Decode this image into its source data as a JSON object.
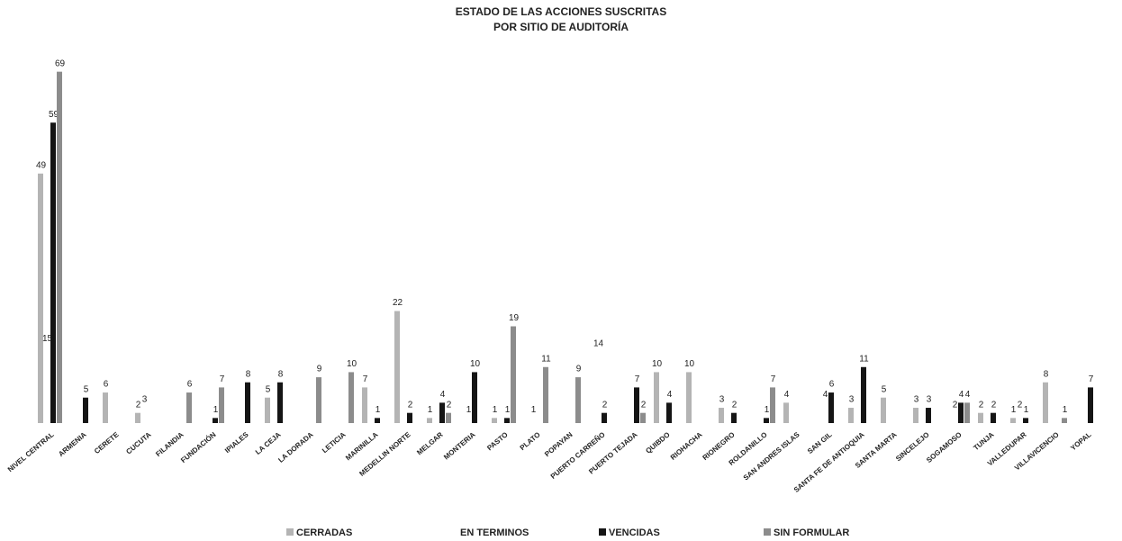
{
  "chart_data": {
    "type": "bar",
    "title_lines": [
      "ESTADO DE LAS ACCIONES SUSCRITAS",
      "POR SITIO DE AUDITORÍA"
    ],
    "categories": [
      "NIVEL CENTRAL",
      "ARMENIA",
      "CERETE",
      "CUCUTA",
      "FILANDIA",
      "FUNDACIÓN",
      "IPIALES",
      "LA CEJA",
      "LA DORADA",
      "LETICIA",
      "MARINILLA",
      "MEDELLIN NORTE",
      "MELGAR",
      "MONTERIA",
      "PASTO",
      "PLATO",
      "POPAYAN",
      "PUERTO CARREÑO",
      "PUERTO TEJADA",
      "QUIBDO",
      "RIOHACHA",
      "RIONEGRO",
      "ROLDANILLO",
      "SAN ANDRES ISLAS",
      "SAN GIL",
      "SANTA FE DE ANTIOQUIA",
      "SANTA MARTA",
      "SINCELEJO",
      "SOGAMOSO",
      "TUNJA",
      "VALLEDUPAR",
      "VILLAVICENCIO",
      "YOPAL"
    ],
    "series": [
      {
        "name": "CERRADAS",
        "color": "#b4b4b4",
        "values": [
          49,
          null,
          6,
          2,
          null,
          null,
          null,
          5,
          null,
          null,
          7,
          22,
          1,
          null,
          1,
          null,
          null,
          null,
          null,
          10,
          10,
          3,
          null,
          4,
          null,
          3,
          5,
          3,
          null,
          2,
          1,
          8,
          null
        ]
      },
      {
        "name": "EN TERMINOS",
        "color": "#ffffff",
        "values": [
          15,
          null,
          null,
          3,
          null,
          null,
          null,
          null,
          null,
          null,
          null,
          null,
          null,
          1,
          null,
          1,
          null,
          14,
          null,
          null,
          null,
          null,
          null,
          null,
          4,
          null,
          null,
          null,
          2,
          null,
          2,
          null,
          null
        ]
      },
      {
        "name": "VENCIDAS",
        "color": "#151515",
        "values": [
          59,
          5,
          null,
          null,
          null,
          1,
          8,
          8,
          null,
          null,
          1,
          2,
          4,
          10,
          1,
          null,
          null,
          2,
          7,
          4,
          null,
          2,
          1,
          null,
          6,
          11,
          null,
          3,
          4,
          2,
          1,
          null,
          7
        ]
      },
      {
        "name": "SIN FORMULAR",
        "color": "#8c8c8c",
        "values": [
          69,
          null,
          null,
          null,
          6,
          7,
          null,
          null,
          9,
          10,
          null,
          null,
          2,
          null,
          19,
          11,
          9,
          null,
          2,
          null,
          null,
          null,
          7,
          null,
          null,
          null,
          null,
          null,
          4,
          null,
          null,
          1,
          null
        ]
      }
    ],
    "ylim": [
      0,
      70
    ]
  }
}
